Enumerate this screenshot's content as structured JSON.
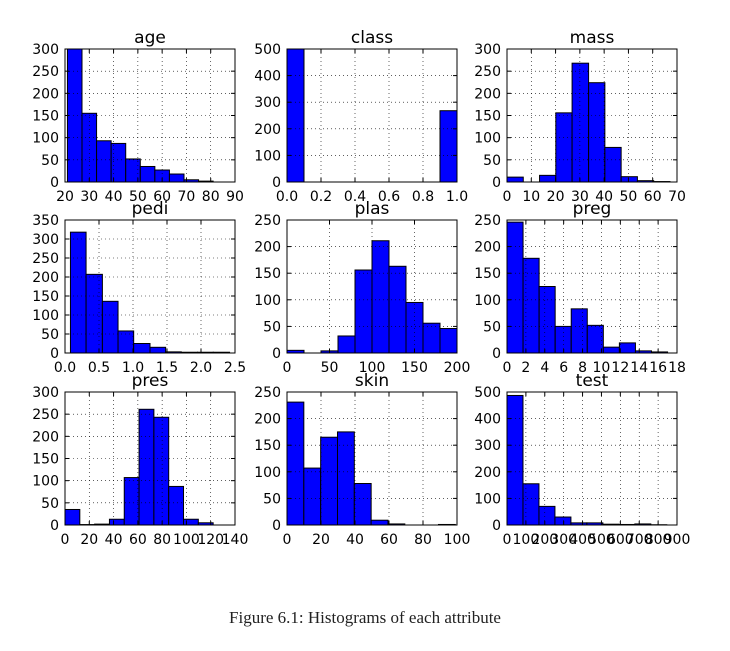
{
  "caption": "Figure 6.1: Histograms of each attribute",
  "bar_color": "#0000ff",
  "chart_data": [
    {
      "type": "bar",
      "title": "age",
      "grid": true,
      "xlim": [
        20,
        90
      ],
      "xticks": [
        "20",
        "30",
        "40",
        "50",
        "60",
        "70",
        "80",
        "90"
      ],
      "ylim": [
        0,
        300
      ],
      "yticks": [
        "0",
        "50",
        "100",
        "150",
        "200",
        "250",
        "300"
      ],
      "bins": [
        [
          21,
          27
        ],
        [
          27,
          33
        ],
        [
          33,
          39
        ],
        [
          39,
          45
        ],
        [
          45,
          51
        ],
        [
          51,
          57
        ],
        [
          57,
          63
        ],
        [
          63,
          69
        ],
        [
          69,
          75
        ],
        [
          75,
          81
        ]
      ],
      "values": [
        318,
        155,
        93,
        87,
        52,
        35,
        27,
        18,
        5,
        2
      ]
    },
    {
      "type": "bar",
      "title": "class",
      "grid": true,
      "xlim": [
        0,
        1
      ],
      "xticks": [
        "0.0",
        "0.2",
        "0.4",
        "0.6",
        "0.8",
        "1.0"
      ],
      "ylim": [
        0,
        500
      ],
      "yticks": [
        "0",
        "100",
        "200",
        "300",
        "400",
        "500"
      ],
      "bins": [
        [
          0,
          0.1
        ],
        [
          0.9,
          1.0
        ]
      ],
      "values": [
        500,
        268
      ]
    },
    {
      "type": "bar",
      "title": "mass",
      "grid": true,
      "xlim": [
        0,
        70
      ],
      "xticks": [
        "0",
        "10",
        "20",
        "30",
        "40",
        "50",
        "60",
        "70"
      ],
      "ylim": [
        0,
        300
      ],
      "yticks": [
        "0",
        "50",
        "100",
        "150",
        "200",
        "250",
        "300"
      ],
      "bins": [
        [
          0,
          6.7
        ],
        [
          6.7,
          13.4
        ],
        [
          13.4,
          20.1
        ],
        [
          20.1,
          26.8
        ],
        [
          26.8,
          33.6
        ],
        [
          33.6,
          40.3
        ],
        [
          40.3,
          47.0
        ],
        [
          47.0,
          53.7
        ],
        [
          53.7,
          60.4
        ],
        [
          60.4,
          67.1
        ]
      ],
      "values": [
        11,
        0,
        15,
        156,
        268,
        224,
        78,
        12,
        3,
        1
      ]
    },
    {
      "type": "bar",
      "title": "pedi",
      "grid": true,
      "xlim": [
        0,
        2.5
      ],
      "xticks": [
        "0.0",
        "0.5",
        "1.0",
        "1.5",
        "2.0",
        "2.5"
      ],
      "ylim": [
        0,
        350
      ],
      "yticks": [
        "0",
        "50",
        "100",
        "150",
        "200",
        "250",
        "300",
        "350"
      ],
      "bins": [
        [
          0.08,
          0.31
        ],
        [
          0.31,
          0.55
        ],
        [
          0.55,
          0.78
        ],
        [
          0.78,
          1.01
        ],
        [
          1.01,
          1.25
        ],
        [
          1.25,
          1.48
        ],
        [
          1.48,
          1.71
        ],
        [
          1.71,
          1.95
        ],
        [
          1.95,
          2.18
        ],
        [
          2.18,
          2.42
        ]
      ],
      "values": [
        318,
        207,
        136,
        58,
        25,
        15,
        3,
        2,
        2,
        2
      ]
    },
    {
      "type": "bar",
      "title": "plas",
      "grid": true,
      "xlim": [
        0,
        200
      ],
      "xticks": [
        "0",
        "50",
        "100",
        "150",
        "200"
      ],
      "ylim": [
        0,
        250
      ],
      "yticks": [
        "0",
        "50",
        "100",
        "150",
        "200",
        "250"
      ],
      "bins": [
        [
          0,
          20
        ],
        [
          20,
          40
        ],
        [
          40,
          60
        ],
        [
          60,
          80
        ],
        [
          80,
          100
        ],
        [
          100,
          120
        ],
        [
          120,
          140
        ],
        [
          140,
          160
        ],
        [
          160,
          180
        ],
        [
          180,
          200
        ]
      ],
      "values": [
        5,
        0,
        4,
        32,
        156,
        211,
        163,
        95,
        56,
        46
      ]
    },
    {
      "type": "bar",
      "title": "preg",
      "grid": true,
      "xlim": [
        0,
        18
      ],
      "xticks": [
        "0",
        "2",
        "4",
        "6",
        "8",
        "10",
        "12",
        "14",
        "16",
        "18"
      ],
      "ylim": [
        0,
        250
      ],
      "yticks": [
        "0",
        "50",
        "100",
        "150",
        "200",
        "250"
      ],
      "bins": [
        [
          0,
          1.7
        ],
        [
          1.7,
          3.4
        ],
        [
          3.4,
          5.1
        ],
        [
          5.1,
          6.8
        ],
        [
          6.8,
          8.5
        ],
        [
          8.5,
          10.2
        ],
        [
          10.2,
          11.9
        ],
        [
          11.9,
          13.6
        ],
        [
          13.6,
          15.3
        ],
        [
          15.3,
          17
        ]
      ],
      "values": [
        246,
        178,
        125,
        50,
        83,
        52,
        11,
        19,
        4,
        2
      ]
    },
    {
      "type": "bar",
      "title": "pres",
      "grid": true,
      "xlim": [
        0,
        140
      ],
      "xticks": [
        "0",
        "20",
        "40",
        "60",
        "80",
        "100",
        "120",
        "140"
      ],
      "ylim": [
        0,
        300
      ],
      "yticks": [
        "0",
        "50",
        "100",
        "150",
        "200",
        "250",
        "300"
      ],
      "bins": [
        [
          0,
          12.2
        ],
        [
          12.2,
          24.4
        ],
        [
          24.4,
          36.6
        ],
        [
          36.6,
          48.8
        ],
        [
          48.8,
          61
        ],
        [
          61,
          73.2
        ],
        [
          73.2,
          85.4
        ],
        [
          85.4,
          97.6
        ],
        [
          97.6,
          109.8
        ],
        [
          109.8,
          122
        ]
      ],
      "values": [
        35,
        1,
        2,
        13,
        107,
        261,
        243,
        87,
        13,
        5
      ]
    },
    {
      "type": "bar",
      "title": "skin",
      "grid": true,
      "xlim": [
        0,
        100
      ],
      "xticks": [
        "0",
        "20",
        "40",
        "60",
        "80",
        "100"
      ],
      "ylim": [
        0,
        250
      ],
      "yticks": [
        "0",
        "50",
        "100",
        "150",
        "200",
        "250"
      ],
      "bins": [
        [
          0,
          9.9
        ],
        [
          9.9,
          19.8
        ],
        [
          19.8,
          29.7
        ],
        [
          29.7,
          39.6
        ],
        [
          39.6,
          49.5
        ],
        [
          49.5,
          59.4
        ],
        [
          59.4,
          69.3
        ],
        [
          69.3,
          79.2
        ],
        [
          79.2,
          89.1
        ],
        [
          89.1,
          99
        ]
      ],
      "values": [
        231,
        107,
        165,
        175,
        78,
        9,
        2,
        0,
        0,
        1
      ]
    },
    {
      "type": "bar",
      "title": "test",
      "grid": true,
      "xlim": [
        0,
        900
      ],
      "xticks": [
        "0",
        "100",
        "200",
        "300",
        "400",
        "500",
        "600",
        "700",
        "800",
        "900"
      ],
      "ylim": [
        0,
        500
      ],
      "yticks": [
        "0",
        "100",
        "200",
        "300",
        "400",
        "500"
      ],
      "bins": [
        [
          0,
          84.6
        ],
        [
          84.6,
          169.2
        ],
        [
          169.2,
          253.8
        ],
        [
          253.8,
          338.4
        ],
        [
          338.4,
          423
        ],
        [
          423,
          507.6
        ],
        [
          507.6,
          592.2
        ],
        [
          592.2,
          676.8
        ],
        [
          676.8,
          761.4
        ],
        [
          761.4,
          846
        ]
      ],
      "values": [
        487,
        155,
        70,
        30,
        8,
        8,
        3,
        2,
        4,
        1
      ]
    }
  ]
}
